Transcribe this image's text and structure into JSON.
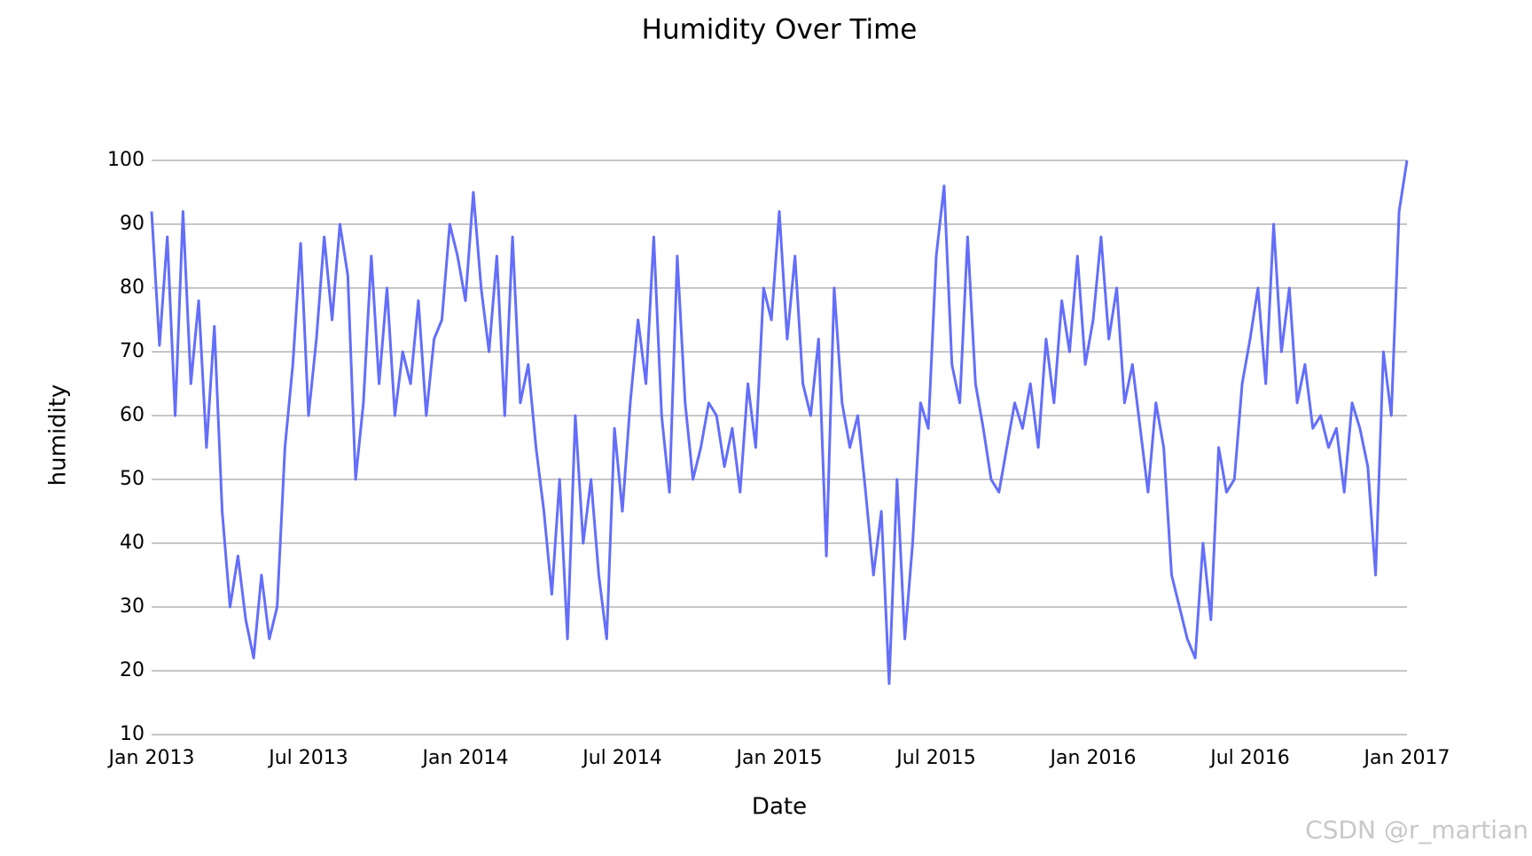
{
  "chart_data": {
    "type": "line",
    "title": "Humidity Over Time",
    "xlabel": "Date",
    "ylabel": "humidity",
    "watermark": "CSDN @r_martian",
    "color": "#636efa",
    "grid": true,
    "xlim": [
      2013,
      2017
    ],
    "xticks": [
      {
        "value": 2013,
        "label": "Jan 2013"
      },
      {
        "value": 2013.5,
        "label": "Jul 2013"
      },
      {
        "value": 2014,
        "label": "Jan 2014"
      },
      {
        "value": 2014.5,
        "label": "Jul 2014"
      },
      {
        "value": 2015,
        "label": "Jan 2015"
      },
      {
        "value": 2015.5,
        "label": "Jul 2015"
      },
      {
        "value": 2016,
        "label": "Jan 2016"
      },
      {
        "value": 2016.5,
        "label": "Jul 2016"
      },
      {
        "value": 2017,
        "label": "Jan 2017"
      }
    ],
    "ylim": [
      10,
      100
    ],
    "yticks": [
      10,
      20,
      30,
      40,
      50,
      60,
      70,
      80,
      90,
      100
    ],
    "x": [
      2013,
      2013.025,
      2013.05,
      2013.075,
      2013.1,
      2013.125,
      2013.15,
      2013.175,
      2013.2,
      2013.225,
      2013.25,
      2013.275,
      2013.3,
      2013.325,
      2013.35,
      2013.375,
      2013.4,
      2013.425,
      2013.45,
      2013.475,
      2013.5,
      2013.525,
      2013.55,
      2013.575,
      2013.6,
      2013.625,
      2013.65,
      2013.675,
      2013.7,
      2013.725,
      2013.75,
      2013.775,
      2013.8,
      2013.825,
      2013.85,
      2013.875,
      2013.9,
      2013.925,
      2013.95,
      2013.975,
      2014,
      2014.025,
      2014.05,
      2014.075,
      2014.1,
      2014.125,
      2014.15,
      2014.175,
      2014.2,
      2014.225,
      2014.25,
      2014.275,
      2014.3,
      2014.325,
      2014.35,
      2014.375,
      2014.4,
      2014.425,
      2014.45,
      2014.475,
      2014.5,
      2014.525,
      2014.55,
      2014.575,
      2014.6,
      2014.625,
      2014.65,
      2014.675,
      2014.7,
      2014.725,
      2014.75,
      2014.775,
      2014.8,
      2014.825,
      2014.85,
      2014.875,
      2014.9,
      2014.925,
      2014.95,
      2014.975,
      2015,
      2015.025,
      2015.05,
      2015.075,
      2015.1,
      2015.125,
      2015.15,
      2015.175,
      2015.2,
      2015.225,
      2015.25,
      2015.275,
      2015.3,
      2015.325,
      2015.35,
      2015.375,
      2015.4,
      2015.425,
      2015.45,
      2015.475,
      2015.5,
      2015.525,
      2015.55,
      2015.575,
      2015.6,
      2015.625,
      2015.65,
      2015.675,
      2015.7,
      2015.725,
      2015.75,
      2015.775,
      2015.8,
      2015.825,
      2015.85,
      2015.875,
      2015.9,
      2015.925,
      2015.95,
      2015.975,
      2016,
      2016.025,
      2016.05,
      2016.075,
      2016.1,
      2016.125,
      2016.15,
      2016.175,
      2016.2,
      2016.225,
      2016.25,
      2016.275,
      2016.3,
      2016.325,
      2016.35,
      2016.375,
      2016.4,
      2016.425,
      2016.45,
      2016.475,
      2016.5,
      2016.525,
      2016.55,
      2016.575,
      2016.6,
      2016.625,
      2016.65,
      2016.675,
      2016.7,
      2016.725,
      2016.75,
      2016.775,
      2016.8,
      2016.825,
      2016.85,
      2016.875,
      2016.9,
      2016.925,
      2016.95,
      2016.975,
      2017
    ],
    "values": [
      92,
      71,
      88,
      60,
      92,
      65,
      78,
      55,
      74,
      45,
      30,
      38,
      28,
      22,
      35,
      25,
      30,
      55,
      68,
      87,
      60,
      72,
      88,
      75,
      90,
      82,
      50,
      62,
      85,
      65,
      80,
      60,
      70,
      65,
      78,
      60,
      72,
      75,
      90,
      85,
      78,
      95,
      80,
      70,
      85,
      60,
      88,
      62,
      68,
      55,
      45,
      32,
      50,
      25,
      60,
      40,
      50,
      35,
      25,
      58,
      45,
      62,
      75,
      65,
      88,
      60,
      48,
      85,
      62,
      50,
      55,
      62,
      60,
      52,
      58,
      48,
      65,
      55,
      80,
      75,
      92,
      72,
      85,
      65,
      60,
      72,
      38,
      80,
      62,
      55,
      60,
      48,
      35,
      45,
      18,
      50,
      25,
      40,
      62,
      58,
      85,
      96,
      68,
      62,
      88,
      65,
      58,
      50,
      48,
      55,
      62,
      58,
      65,
      55,
      72,
      62,
      78,
      70,
      85,
      68,
      75,
      88,
      72,
      80,
      62,
      68,
      58,
      48,
      62,
      55,
      35,
      30,
      25,
      22,
      40,
      28,
      55,
      48,
      50,
      65,
      72,
      80,
      65,
      90,
      70,
      80,
      62,
      68,
      58,
      60,
      55,
      58,
      48,
      62,
      58,
      52,
      35,
      70,
      60,
      92,
      100
    ]
  }
}
